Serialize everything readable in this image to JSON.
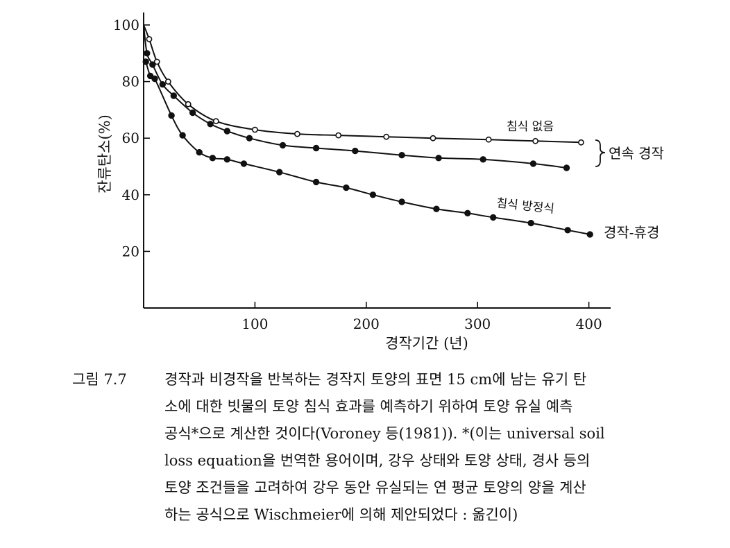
{
  "chart_data": {
    "type": "line",
    "title": "",
    "xlabel": "경작기간 (년)",
    "ylabel": "잔류탄소(%)",
    "xlim": [
      0,
      410
    ],
    "ylim": [
      0,
      100
    ],
    "xticks": [
      "100",
      "200",
      "300",
      "400"
    ],
    "yticks": [
      "20",
      "40",
      "60",
      "80",
      "100"
    ],
    "grid": false,
    "series": [
      {
        "name": "침식 없음",
        "marker": "open-circle",
        "x": [
          0,
          5,
          12,
          22,
          40,
          65,
          100,
          138,
          175,
          218,
          260,
          310,
          352,
          393
        ],
        "y": [
          100,
          95,
          87,
          80,
          72,
          66,
          63,
          61.5,
          61,
          60.5,
          60,
          59.5,
          59,
          58.5
        ]
      },
      {
        "name": "",
        "marker": "filled-circle",
        "x": [
          0,
          3,
          8,
          17,
          27,
          44,
          60,
          75,
          95,
          125,
          155,
          190,
          232,
          265,
          305,
          350,
          380
        ],
        "y": [
          100,
          90,
          86,
          79,
          75,
          69,
          65,
          62.5,
          60,
          57.5,
          56.5,
          55.5,
          54,
          53,
          52.5,
          51,
          49.5
        ]
      },
      {
        "name": "침식 방정식",
        "marker": "filled-circle",
        "x": [
          2,
          6,
          10,
          25,
          35,
          50,
          62,
          75,
          90,
          122,
          155,
          182,
          206,
          232,
          263,
          291,
          314,
          348,
          381,
          401
        ],
        "y": [
          87,
          82,
          81,
          68,
          61,
          55,
          53,
          52.5,
          51,
          48,
          44.5,
          42.5,
          40,
          37.5,
          35,
          33.5,
          32,
          30,
          27.5,
          26
        ]
      }
    ],
    "annotations": {
      "no_erosion": "침식 없음",
      "erosion_equation": "침식 방정식",
      "continuous": "연속 경작",
      "fallow": "경작-휴경"
    }
  },
  "caption": {
    "label": "그림 7.7",
    "lines": [
      "경작과 비경작을 반복하는 경작지 토양의 표면 15 cm에 남는 유기 탄",
      "소에 대한 빗물의 토양 침식 효과를 예측하기 위하여 토양 유실 예측",
      "공식*으로 계산한 것이다(Voroney 등(1981)). *(이는 universal soil",
      "loss equation을 번역한 용어이며, 강우 상태와 토양 상태, 경사 등의",
      "토양 조건들을 고려하여 강우 동안 유실되는 연 평균 토양의 양을 계산",
      "하는 공식으로 Wischmeier에 의해 제안되었다 : 옮긴이)"
    ]
  }
}
